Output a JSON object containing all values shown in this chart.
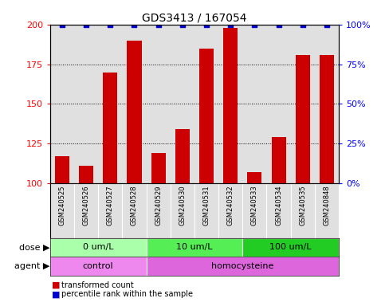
{
  "title": "GDS3413 / 167054",
  "samples": [
    "GSM240525",
    "GSM240526",
    "GSM240527",
    "GSM240528",
    "GSM240529",
    "GSM240530",
    "GSM240531",
    "GSM240532",
    "GSM240533",
    "GSM240534",
    "GSM240535",
    "GSM240848"
  ],
  "transformed_count": [
    117,
    111,
    170,
    190,
    119,
    134,
    185,
    198,
    107,
    129,
    181,
    181
  ],
  "percentile_rank": [
    100,
    100,
    100,
    100,
    100,
    100,
    100,
    100,
    100,
    100,
    100,
    100
  ],
  "bar_color": "#cc0000",
  "dot_color": "#0000cc",
  "ylim_left": [
    100,
    200
  ],
  "ylim_right": [
    0,
    100
  ],
  "yticks_left": [
    100,
    125,
    150,
    175,
    200
  ],
  "yticks_right": [
    0,
    25,
    50,
    75,
    100
  ],
  "dose_groups": [
    {
      "label": "0 um/L",
      "start": 0,
      "end": 3,
      "color": "#aaffaa"
    },
    {
      "label": "10 um/L",
      "start": 4,
      "end": 7,
      "color": "#55ee55"
    },
    {
      "label": "100 um/L",
      "start": 8,
      "end": 11,
      "color": "#22cc22"
    }
  ],
  "agent_groups": [
    {
      "label": "control",
      "start": 0,
      "end": 3,
      "color": "#ee88ee"
    },
    {
      "label": "homocysteine",
      "start": 4,
      "end": 11,
      "color": "#dd66dd"
    }
  ],
  "dose_label": "dose",
  "agent_label": "agent",
  "legend_bar_label": "transformed count",
  "legend_dot_label": "percentile rank within the sample",
  "bar_width": 0.6,
  "plot_bg_color": "#e0e0e0",
  "title_fontsize": 10,
  "tick_fontsize": 7,
  "annotation_fontsize": 8,
  "sample_fontsize": 6
}
